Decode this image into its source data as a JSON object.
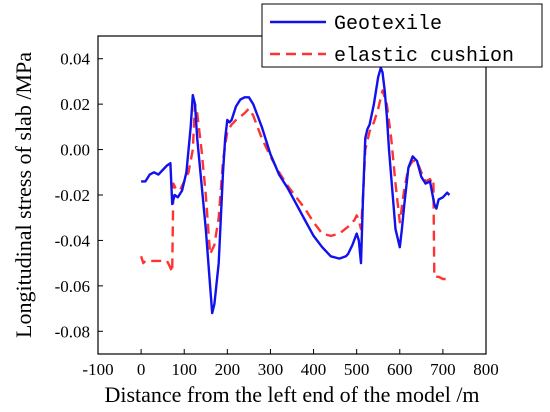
{
  "chart_data": {
    "type": "line",
    "title": "",
    "xlabel": "Distance from the left end of the model /m",
    "ylabel": "Longitudinal stress of slab /MPa",
    "xlim": [
      -100,
      800
    ],
    "ylim": [
      -0.09,
      0.05
    ],
    "xticks": [
      -100,
      0,
      100,
      200,
      300,
      400,
      500,
      600,
      700,
      800
    ],
    "yticks": [
      -0.08,
      -0.06,
      -0.04,
      -0.02,
      0.0,
      0.02,
      0.04
    ],
    "xtick_labels": [
      "-100",
      "0",
      "100",
      "200",
      "300",
      "400",
      "500",
      "600",
      "700",
      "800"
    ],
    "ytick_labels": [
      "-0.08",
      "-0.06",
      "-0.04",
      "-0.02",
      "0.00",
      "0.02",
      "0.04"
    ],
    "legend_position": "top-right",
    "grid": false,
    "series": [
      {
        "name": "Geotexile",
        "color": "#1111ee",
        "style": "solid",
        "x": [
          0,
          10,
          20,
          30,
          40,
          50,
          60,
          68,
          72,
          78,
          85,
          95,
          105,
          115,
          120,
          125,
          130,
          140,
          150,
          160,
          165,
          170,
          180,
          190,
          195,
          200,
          205,
          210,
          220,
          230,
          240,
          250,
          260,
          270,
          280,
          300,
          320,
          340,
          360,
          380,
          400,
          420,
          440,
          460,
          475,
          480,
          490,
          500,
          505,
          510,
          515,
          520,
          525,
          530,
          540,
          550,
          556,
          560,
          565,
          570,
          575,
          580,
          590,
          600,
          605,
          610,
          620,
          630,
          640,
          650,
          660,
          670,
          680,
          685,
          690,
          700,
          710,
          715
        ],
        "y": [
          -0.014,
          -0.014,
          -0.011,
          -0.01,
          -0.011,
          -0.009,
          -0.007,
          -0.006,
          -0.024,
          -0.02,
          -0.021,
          -0.018,
          -0.01,
          0.01,
          0.024,
          0.02,
          0.005,
          -0.015,
          -0.035,
          -0.06,
          -0.072,
          -0.068,
          -0.05,
          -0.01,
          0.005,
          0.013,
          0.012,
          0.013,
          0.019,
          0.022,
          0.023,
          0.023,
          0.02,
          0.015,
          0.01,
          -0.002,
          -0.011,
          -0.017,
          -0.024,
          -0.031,
          -0.038,
          -0.043,
          -0.047,
          -0.048,
          -0.047,
          -0.046,
          -0.042,
          -0.037,
          -0.04,
          -0.05,
          -0.02,
          0.005,
          0.009,
          0.011,
          0.02,
          0.032,
          0.036,
          0.034,
          0.026,
          0.015,
          0.0,
          -0.012,
          -0.035,
          -0.043,
          -0.035,
          -0.025,
          -0.008,
          -0.003,
          -0.005,
          -0.012,
          -0.015,
          -0.014,
          -0.024,
          -0.026,
          -0.022,
          -0.021,
          -0.019,
          -0.02
        ]
      },
      {
        "name": "elastic cushion",
        "color": "#ff3333",
        "style": "dashed",
        "x": [
          0,
          5,
          10,
          20,
          40,
          60,
          68,
          72,
          75,
          80,
          90,
          100,
          110,
          120,
          125,
          130,
          140,
          150,
          160,
          170,
          180,
          190,
          200,
          210,
          220,
          240,
          250,
          260,
          280,
          300,
          320,
          340,
          360,
          380,
          400,
          420,
          440,
          460,
          480,
          495,
          500,
          505,
          510,
          515,
          520,
          530,
          540,
          550,
          560,
          570,
          580,
          590,
          600,
          610,
          620,
          630,
          640,
          650,
          660,
          670,
          675,
          678,
          680,
          690,
          700,
          710
        ],
        "y": [
          -0.047,
          -0.05,
          -0.049,
          -0.049,
          -0.049,
          -0.049,
          -0.052,
          -0.054,
          -0.015,
          -0.017,
          -0.018,
          -0.014,
          -0.01,
          0.0,
          0.02,
          0.016,
          0.0,
          -0.02,
          -0.046,
          -0.042,
          -0.03,
          -0.005,
          0.008,
          0.011,
          0.013,
          0.016,
          0.018,
          0.015,
          0.005,
          -0.003,
          -0.01,
          -0.016,
          -0.021,
          -0.026,
          -0.032,
          -0.037,
          -0.038,
          -0.037,
          -0.034,
          -0.031,
          -0.029,
          -0.031,
          -0.035,
          -0.02,
          0.0,
          0.008,
          0.012,
          0.018,
          0.026,
          0.02,
          0.005,
          -0.015,
          -0.032,
          -0.018,
          -0.008,
          -0.005,
          -0.005,
          -0.01,
          -0.014,
          -0.013,
          -0.015,
          -0.014,
          -0.056,
          -0.056,
          -0.057,
          -0.057
        ]
      }
    ]
  }
}
